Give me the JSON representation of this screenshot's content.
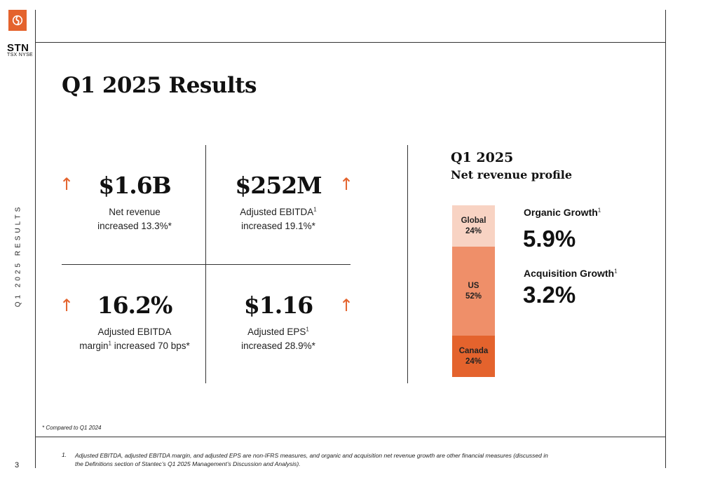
{
  "brand": {
    "ticker": "STN",
    "exchanges": "TSX NYSE",
    "logo_icon": "stantec-logo-icon",
    "accent_color": "#e4632d"
  },
  "side_label": "Q1 2025 RESULTS",
  "page_number": "3",
  "title": "Q1 2025 Results",
  "kpis": {
    "net_revenue": {
      "value": "$1.6B",
      "line1": "Net revenue",
      "line2": "increased 13.3%*",
      "trend": "up-arrow-icon"
    },
    "adjusted_ebitda": {
      "value": "$252M",
      "line1": "Adjusted EBITDA",
      "sup": "1",
      "line2": "increased 19.1%*",
      "trend": "up-arrow-icon"
    },
    "ebitda_margin": {
      "value": "16.2%",
      "line1": "Adjusted EBITDA",
      "line2a": "margin",
      "sup": "1",
      "line2b": " increased 70 bps*",
      "trend": "up-arrow-icon"
    },
    "adjusted_eps": {
      "value": "$1.16",
      "line1": "Adjusted EPS",
      "sup": "1",
      "line2": "increased 28.9%*",
      "trend": "up-arrow-icon"
    }
  },
  "revenue_profile": {
    "title": "Q1 2025",
    "subtitle": "Net revenue profile",
    "segments": [
      {
        "name": "Global",
        "label": "24%",
        "share": 24,
        "color": "#f8d3c3"
      },
      {
        "name": "US",
        "label": "52%",
        "share": 52,
        "color": "#ef8f69"
      },
      {
        "name": "Canada",
        "label": "24%",
        "share": 24,
        "color": "#e4632d"
      }
    ]
  },
  "growth": {
    "organic_label": "Organic Growth",
    "organic_sup": "1",
    "organic_value": "5.9%",
    "acquisition_label": "Acquisition Growth",
    "acquisition_sup": "1",
    "acquisition_value": "3.2%"
  },
  "notes": {
    "compare": "* Compared to Q1 2024",
    "footnote_number": "1.",
    "footnote_line1": "Adjusted EBITDA, adjusted EBITDA margin, and adjusted EPS are non-IFRS measures, and organic and acquisition net revenue growth are other financial measures (discussed in",
    "footnote_line2": "the Definitions section of Stantec’s Q1 2025 Management’s Discussion and Analysis)."
  }
}
